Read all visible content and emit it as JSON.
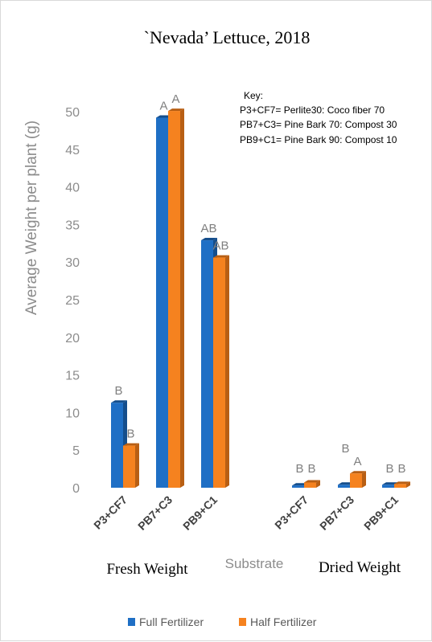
{
  "chart_data": {
    "type": "bar",
    "title": "`Nevada’ Lettuce, 2018",
    "ylabel": "Average Weight per plant (g)",
    "xlabel": "Substrate",
    "ylim": [
      0,
      50
    ],
    "yticks": [
      0,
      5,
      10,
      15,
      20,
      25,
      30,
      35,
      40,
      45,
      50
    ],
    "grid": false,
    "legend_position": "bottom",
    "groups": [
      {
        "label": "Fresh Weight",
        "categories": [
          "P3+CF7",
          "PB7+C3",
          "PB9+C1"
        ]
      },
      {
        "label": "Dried Weight",
        "categories": [
          "P3+CF7",
          "PB7+C3",
          "PB9+C1"
        ]
      }
    ],
    "series": [
      {
        "name": "Full Fertilizer",
        "color": "#1f6fc5",
        "values": [
          11.3,
          49.2,
          32.9,
          0.3,
          0.4,
          0.4
        ],
        "labels": [
          "B",
          "A",
          "AB",
          "B",
          "B",
          "B"
        ]
      },
      {
        "name": "Half Fertilizer",
        "color": "#f5821f",
        "values": [
          5.6,
          50.1,
          30.6,
          0.7,
          1.9,
          0.5
        ],
        "labels": [
          "B",
          "A",
          "AB",
          "B",
          "A",
          "B"
        ]
      }
    ],
    "key": {
      "title": "Key:",
      "lines": [
        "P3+CF7= Perlite30: Coco fiber 70",
        "PB7+C3= Pine Bark 70: Compost 30",
        "PB9+C1= Pine Bark 90: Compost 10"
      ]
    }
  }
}
